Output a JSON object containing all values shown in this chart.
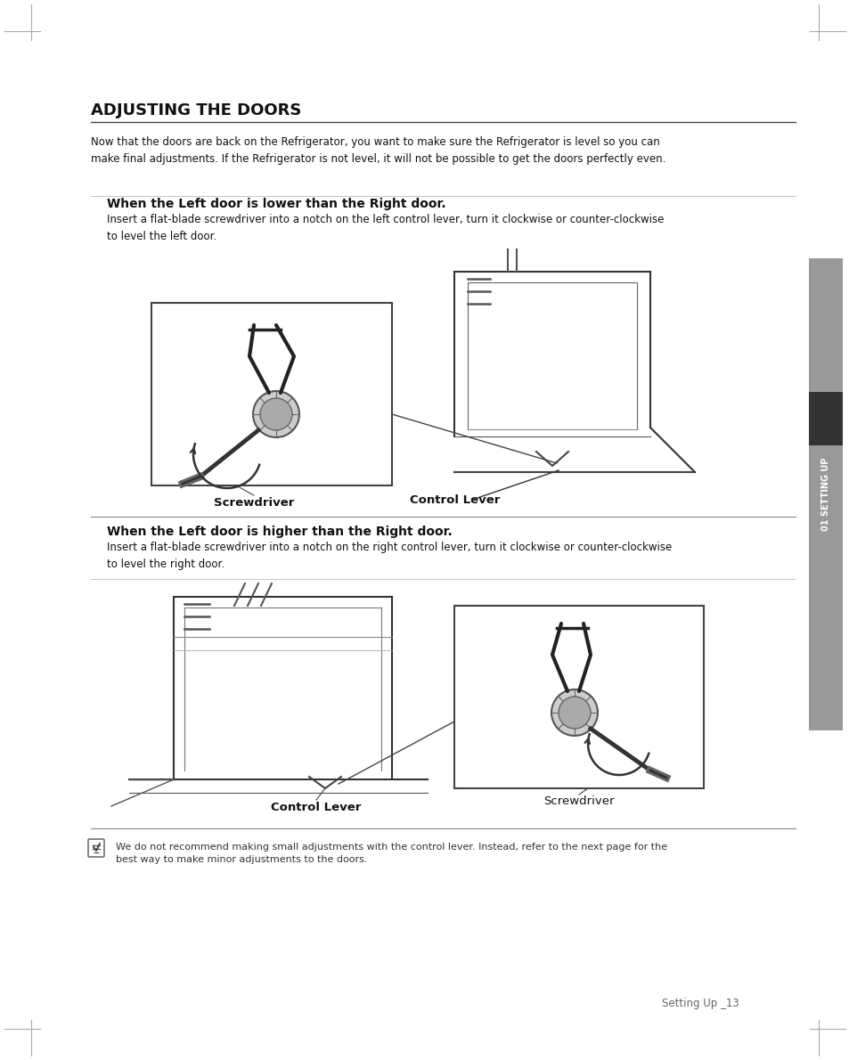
{
  "page_bg": "#ffffff",
  "title": "ADJUSTING THE DOORS",
  "intro_text": "Now that the doors are back on the Refrigerator, you want to make sure the Refrigerator is level so you can\nmake final adjustments. If the Refrigerator is not level, it will not be possible to get the doors perfectly even.",
  "section1_title": "When the Left door is lower than the Right door.",
  "section1_body": "Insert a flat-blade screwdriver into a notch on the left control lever, turn it clockwise or counter-clockwise\nto level the left door.",
  "section2_title": "When the Left door is higher than the Right door.",
  "section2_body": "Insert a flat-blade screwdriver into a notch on the right control lever, turn it clockwise or counter-clockwise\nto level the right door.",
  "note_text": "We do not recommend making small adjustments with the control lever. Instead, refer to the next page for the\nbest way to make minor adjustments to the doors.",
  "footer_text": "Setting Up _13",
  "sidebar_text": "01 SETTING UP"
}
